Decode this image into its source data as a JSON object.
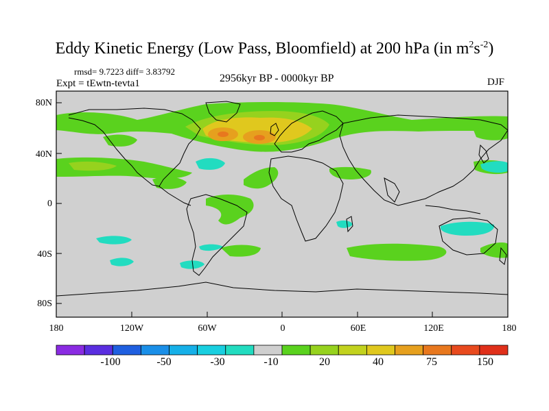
{
  "title": {
    "main": "Eddy Kinetic Energy (Low Pass, Bloomfield) at 200 hPa (in m",
    "exp1": "2",
    "mid": "s",
    "exp2": "-2",
    "close": ")"
  },
  "stats_line": "rmsd= 9.7223 diff= 3.83792",
  "experiment": "Expt = tEwtn-tevta1",
  "period": "2956kyr BP - 0000kyr BP",
  "season": "DJF",
  "map": {
    "projection": "cylindrical equidistant",
    "background_color": "#d0d0d0",
    "coastline_color": "#000000",
    "lat_labels": [
      "80N",
      "40N",
      "0",
      "40S",
      "80S"
    ],
    "lon_labels": [
      "180",
      "120W",
      "60W",
      "0",
      "60E",
      "120E",
      "180"
    ]
  },
  "colorbar": {
    "colors": [
      "#8a2be2",
      "#5a2ee0",
      "#1f5fe0",
      "#1a8fe8",
      "#16b0e8",
      "#19cfe0",
      "#22dcc0",
      "#cfcfcf",
      "#5ad21e",
      "#96d21e",
      "#c2d21e",
      "#e0c81e",
      "#e6a01e",
      "#e8781e",
      "#e84a1e",
      "#e0301a"
    ],
    "labels": [
      "-100",
      "-50",
      "-30",
      "-10",
      "20",
      "40",
      "75",
      "150"
    ]
  },
  "regions": [
    {
      "name": "north-atlantic-positive",
      "level": "20-40",
      "color": "#5ad21e"
    },
    {
      "name": "north-atlantic-core",
      "level": "75-150",
      "color": "#e6a01e"
    },
    {
      "name": "north-pacific-positive",
      "level": "20",
      "color": "#5ad21e"
    },
    {
      "name": "north-pacific-negative",
      "level": "-10",
      "color": "#22dcc0"
    },
    {
      "name": "south-indian-positive",
      "level": "20",
      "color": "#5ad21e"
    },
    {
      "name": "australia-negative",
      "level": "-10",
      "color": "#22dcc0"
    }
  ]
}
